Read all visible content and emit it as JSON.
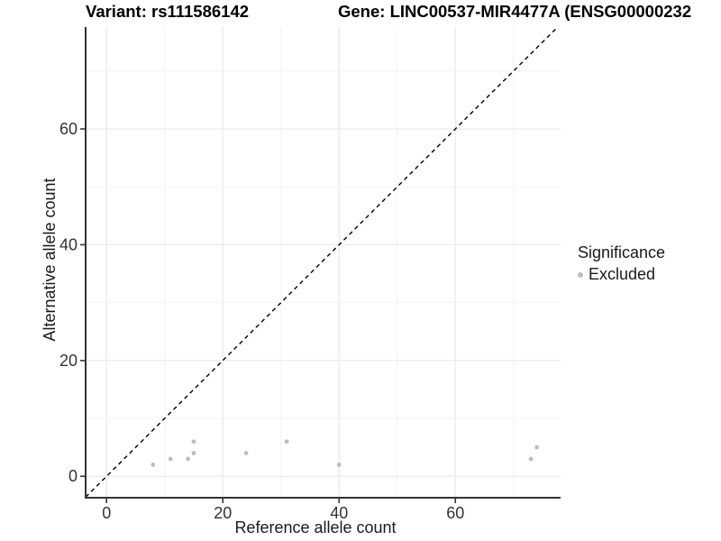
{
  "header": {
    "variant_title": "Variant: rs111586142",
    "gene_title": "Gene: LINC00537-MIR4477A (ENSG00000232"
  },
  "chart_data": {
    "type": "scatter",
    "xlabel": "Reference allele count",
    "ylabel": "Alternative allele count",
    "x_ticks": [
      0,
      20,
      40,
      60
    ],
    "y_ticks": [
      0,
      20,
      40,
      60
    ],
    "x_minor_ticks": [
      10,
      30,
      50,
      70
    ],
    "y_minor_ticks": [
      10,
      30,
      50,
      70
    ],
    "xlim": [
      -3.6,
      78.1
    ],
    "ylim": [
      -3.7,
      77.6
    ],
    "grid": "on",
    "identity_line": {
      "style": "dashed",
      "slope": 1,
      "intercept": 0
    },
    "series": [
      {
        "name": "Excluded",
        "points": [
          [
            8,
            2
          ],
          [
            11,
            3
          ],
          [
            14,
            3
          ],
          [
            15,
            4
          ],
          [
            15,
            6
          ],
          [
            24,
            4
          ],
          [
            31,
            6
          ],
          [
            40,
            2
          ],
          [
            73,
            3
          ],
          [
            74,
            5
          ]
        ]
      }
    ],
    "legend": {
      "title": "Significance",
      "position": "right",
      "items": [
        {
          "label": "Excluded",
          "color": "#bdbdbd"
        }
      ]
    },
    "colors": {
      "point": "#bdbdbd",
      "grid_major": "#e9e9e9",
      "grid_minor": "#f3f3f3",
      "axis_line": "#333333",
      "identity_line": "#000000",
      "tick_text": "#333333"
    }
  }
}
